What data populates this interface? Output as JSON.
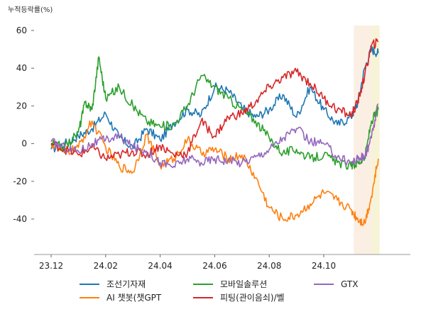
{
  "chart_data": {
    "type": "line",
    "ylabel": "누적등락률(%)",
    "ylim": [
      -58,
      64
    ],
    "y_ticks": [
      60,
      40,
      20,
      0,
      -20,
      -40
    ],
    "y_tick_labels": [
      "60",
      "40",
      "20",
      "0",
      "-20",
      "-40"
    ],
    "x_range": [
      0,
      12.8
    ],
    "x_ticks": [
      0,
      2,
      4,
      6,
      8,
      10
    ],
    "x_tick_labels": [
      "23.12",
      "24.02",
      "24.04",
      "24.06",
      "24.08",
      "24.10"
    ],
    "highlights": [
      {
        "x0": 11.1,
        "x1": 11.75,
        "color": "#fbeee3"
      },
      {
        "x0": 11.75,
        "x1": 12.05,
        "color": "#f7f3d6"
      }
    ],
    "series": [
      {
        "name": "조선기자재",
        "color": "#1f77b4",
        "x": [
          0,
          0.5,
          1,
          1.5,
          2,
          2.5,
          3,
          3.5,
          4,
          4.5,
          5,
          5.5,
          6,
          6.5,
          7,
          7.5,
          8,
          8.5,
          9,
          9.5,
          10,
          10.5,
          11,
          11.25,
          11.5,
          11.75,
          12
        ],
        "y": [
          -3,
          0,
          4,
          8,
          16,
          3,
          -2,
          8,
          2,
          11,
          18,
          15,
          30,
          28,
          19,
          14,
          18,
          26,
          14,
          30,
          18,
          10,
          14,
          22,
          40,
          50,
          48
        ]
      },
      {
        "name": "AI 챗봇(챗GPT",
        "color": "#ff7f0e",
        "x": [
          0,
          0.5,
          1,
          1.5,
          2,
          2.5,
          3,
          3.5,
          4,
          4.5,
          5,
          5.5,
          6,
          6.5,
          7,
          7.5,
          8,
          8.5,
          9,
          9.5,
          10,
          10.5,
          11,
          11.25,
          11.5,
          11.75,
          12
        ],
        "y": [
          0,
          -5,
          -2,
          12,
          -2,
          -12,
          -15,
          5,
          -12,
          -8,
          2,
          -5,
          -3,
          -8,
          -6,
          -18,
          -34,
          -40,
          -38,
          -32,
          -26,
          -30,
          -35,
          -40,
          -42,
          -28,
          -8
        ]
      },
      {
        "name": "모바일솔루션",
        "color": "#2ca02c",
        "x": [
          0,
          0.5,
          1,
          1.25,
          1.5,
          1.75,
          2,
          2.5,
          3,
          3.5,
          4,
          4.5,
          5,
          5.5,
          6,
          6.5,
          7,
          7.5,
          8,
          8.5,
          9,
          9.5,
          10,
          10.5,
          11,
          11.25,
          11.5,
          11.75,
          12
        ],
        "y": [
          0,
          -2,
          6,
          22,
          18,
          46,
          24,
          30,
          20,
          12,
          9,
          10,
          20,
          36,
          30,
          24,
          18,
          12,
          3,
          -5,
          -3,
          -8,
          -6,
          -10,
          -12,
          -10,
          -8,
          12,
          18
        ]
      },
      {
        "name": "피팅(관이음쇠)/벨",
        "color": "#d62728",
        "x": [
          0,
          0.5,
          1,
          1.5,
          2,
          2.5,
          3,
          3.5,
          4,
          4.5,
          5,
          5.5,
          6,
          6.5,
          7,
          7.5,
          8,
          8.5,
          9,
          9.5,
          10,
          10.5,
          11,
          11.25,
          11.5,
          11.75,
          12
        ],
        "y": [
          0,
          -3,
          -6,
          -2,
          -8,
          -6,
          -4,
          -6,
          -1,
          -6,
          -5,
          12,
          4,
          14,
          16,
          22,
          30,
          35,
          38,
          32,
          24,
          18,
          15,
          22,
          36,
          52,
          54
        ]
      },
      {
        "name": "GTX",
        "color": "#9467bd",
        "x": [
          0,
          0.5,
          1,
          1.5,
          2,
          2.5,
          3,
          3.5,
          4,
          4.5,
          5,
          5.5,
          6,
          6.5,
          7,
          7.5,
          8,
          8.5,
          9,
          9.5,
          10,
          10.5,
          11,
          11.25,
          11.5,
          11.75,
          12
        ],
        "y": [
          1,
          -2,
          -4,
          0,
          2,
          4,
          -2,
          -4,
          -10,
          -12,
          -8,
          -10,
          -8,
          -9,
          -10,
          -7,
          -3,
          3,
          8,
          1,
          0,
          -7,
          -10,
          -8,
          -7,
          3,
          21
        ]
      }
    ]
  }
}
